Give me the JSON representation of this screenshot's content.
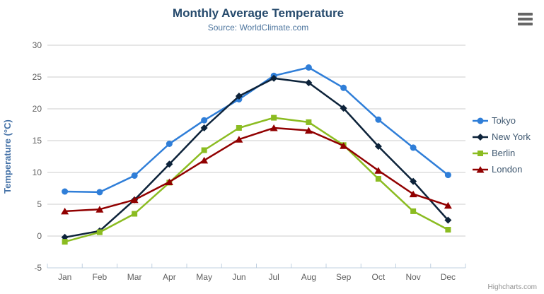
{
  "chart": {
    "title": "Monthly Average Temperature",
    "subtitle": "Source: WorldClimate.com",
    "credits": "Highcharts.com",
    "export_button": "context-menu"
  },
  "colors": {
    "background": "#ffffff",
    "title": "#274b6d",
    "subtitle": "#4d759e",
    "axis_labels": "#606060",
    "yaxis_title": "#4572a7",
    "grid": "#cccccc",
    "axis_line": "#c0d0e0",
    "tick": "#c0d0e0",
    "legend_text": "#3e576f",
    "credits": "#909090",
    "menu_icon": "#666666"
  },
  "chart_data": {
    "type": "line",
    "title": "Monthly Average Temperature",
    "subtitle": "Source: WorldClimate.com",
    "categories": [
      "Jan",
      "Feb",
      "Mar",
      "Apr",
      "May",
      "Jun",
      "Jul",
      "Aug",
      "Sep",
      "Oct",
      "Nov",
      "Dec"
    ],
    "xlabel": "",
    "ylabel": "Temperature (°C)",
    "ylim": [
      -5,
      30
    ],
    "ytick_step": 5,
    "grid": true,
    "legend_position": "right",
    "series": [
      {
        "name": "Tokyo",
        "color": "#2f7ed8",
        "marker": "circle",
        "values": [
          7.0,
          6.9,
          9.5,
          14.5,
          18.2,
          21.5,
          25.2,
          26.5,
          23.3,
          18.3,
          13.9,
          9.6
        ]
      },
      {
        "name": "New York",
        "color": "#0d233a",
        "marker": "diamond",
        "values": [
          -0.2,
          0.8,
          5.7,
          11.3,
          17.0,
          22.0,
          24.8,
          24.1,
          20.1,
          14.1,
          8.6,
          2.5
        ]
      },
      {
        "name": "Berlin",
        "color": "#8bbc21",
        "marker": "square",
        "values": [
          -0.9,
          0.6,
          3.5,
          8.4,
          13.5,
          17.0,
          18.6,
          17.9,
          14.3,
          9.0,
          3.9,
          1.0
        ]
      },
      {
        "name": "London",
        "color": "#910000",
        "marker": "triangle",
        "values": [
          3.9,
          4.2,
          5.7,
          8.5,
          11.9,
          15.2,
          17.0,
          16.6,
          14.2,
          10.3,
          6.6,
          4.8
        ]
      }
    ]
  }
}
